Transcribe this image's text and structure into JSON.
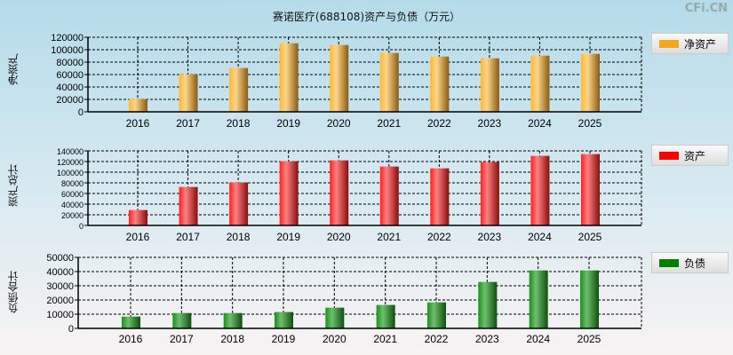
{
  "title": "赛诺医疗(688108)资产与负债（万元）",
  "watermark": "CFi.CN",
  "chart_data": [
    {
      "type": "bar",
      "ylabel": "净资产",
      "legend": "净资产",
      "color": "#f5a623",
      "categories": [
        "2016",
        "2017",
        "2018",
        "2019",
        "2020",
        "2021",
        "2022",
        "2023",
        "2024",
        "2025"
      ],
      "values": [
        20500,
        60400,
        70500,
        110400,
        107600,
        94700,
        89000,
        86200,
        90400,
        93300
      ],
      "ylim": [
        0,
        120000
      ],
      "yticks": [
        0,
        20000,
        40000,
        60000,
        80000,
        100000,
        120000
      ],
      "grid": true,
      "legend_position": "right"
    },
    {
      "type": "bar",
      "ylabel": "资产总计",
      "legend": "资产",
      "color": "#ff0000",
      "categories": [
        "2016",
        "2017",
        "2018",
        "2019",
        "2020",
        "2021",
        "2022",
        "2023",
        "2024",
        "2025"
      ],
      "values": [
        28900,
        72200,
        80600,
        120600,
        122200,
        110600,
        107200,
        118900,
        130600,
        133900
      ],
      "ylim": [
        0,
        140000
      ],
      "yticks": [
        0,
        20000,
        40000,
        60000,
        80000,
        100000,
        120000,
        140000
      ],
      "grid": true,
      "legend_position": "right"
    },
    {
      "type": "bar",
      "ylabel": "负债合计",
      "legend": "负债",
      "color": "#008000",
      "categories": [
        "2016",
        "2017",
        "2018",
        "2019",
        "2020",
        "2021",
        "2022",
        "2023",
        "2024",
        "2025"
      ],
      "values": [
        8300,
        10800,
        10800,
        11500,
        14600,
        16500,
        18300,
        32700,
        40800,
        40800
      ],
      "ylim": [
        0,
        50000
      ],
      "yticks": [
        0,
        10000,
        20000,
        30000,
        40000,
        50000
      ],
      "grid": true,
      "legend_position": "right"
    }
  ]
}
